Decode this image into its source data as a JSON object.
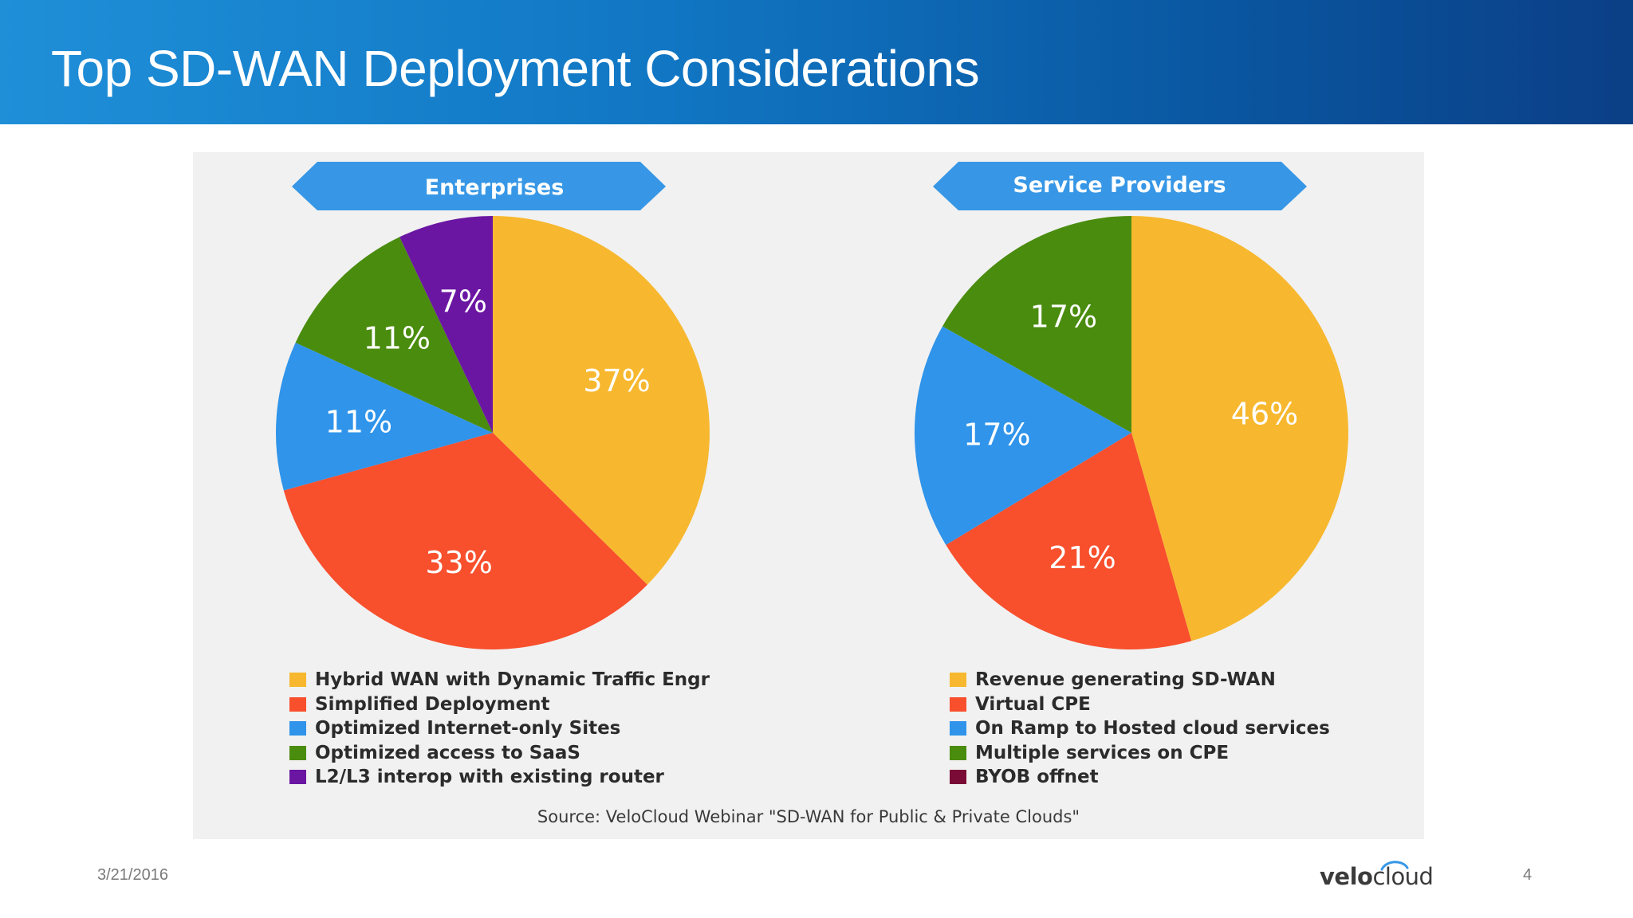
{
  "slide": {
    "title": "Top SD-WAN Deployment Considerations",
    "source": "Source: VeloCloud Webinar \"SD-WAN for Public & Private Clouds\"",
    "date": "3/21/2016",
    "page_number": "4",
    "logo": {
      "part1": "velo",
      "part2": "cloud"
    }
  },
  "colors": {
    "header_start": "#1f8fd8",
    "header_end": "#0b3f86",
    "banner": "#3797e6",
    "panel": "#f1f1f1"
  },
  "chart_data": [
    {
      "type": "pie",
      "title": "Enterprises",
      "series": [
        {
          "name": "Hybrid WAN with Dynamic Traffic Engr",
          "value": 37,
          "label": "37%",
          "color": "#f7b82f"
        },
        {
          "name": "Simplified Deployment",
          "value": 33,
          "label": "33%",
          "color": "#f84f2d"
        },
        {
          "name": "Optimized Internet-only Sites",
          "value": 11,
          "label": "11%",
          "color": "#2f94ea"
        },
        {
          "name": "Optimized access to SaaS",
          "value": 11,
          "label": "11%",
          "color": "#4a8c0e"
        },
        {
          "name": "L2/L3 interop with existing router",
          "value": 7,
          "label": "7%",
          "color": "#6b16a3"
        }
      ]
    },
    {
      "type": "pie",
      "title": "Service Providers",
      "series": [
        {
          "name": "Revenue generating SD-WAN",
          "value": 46,
          "label": "46%",
          "color": "#f7b82f"
        },
        {
          "name": "Virtual CPE",
          "value": 21,
          "label": "21%",
          "color": "#f84f2d"
        },
        {
          "name": "On Ramp to Hosted cloud services",
          "value": 17,
          "label": "17%",
          "color": "#2f94ea"
        },
        {
          "name": "Multiple services on CPE",
          "value": 17,
          "label": "17%",
          "color": "#4a8c0e"
        },
        {
          "name": "BYOB offnet",
          "value": 0,
          "label": "",
          "color": "#7a0a36"
        }
      ]
    }
  ]
}
